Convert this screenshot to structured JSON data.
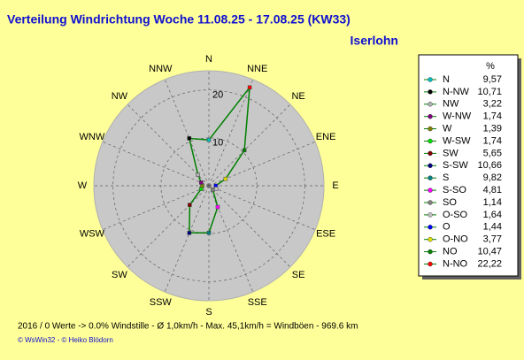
{
  "chart_data": {
    "type": "radar",
    "title": "Verteilung Windrichtung   Woche 11.08.25 - 17.08.25 (KW33)",
    "subtitle": "Iserlohn",
    "categories": [
      "N",
      "NNE",
      "NE",
      "ENE",
      "E",
      "ESE",
      "SE",
      "SSE",
      "S",
      "SSW",
      "SW",
      "WSW",
      "W",
      "WNW",
      "NW",
      "NNW"
    ],
    "values": [
      9.57,
      22.22,
      10.47,
      3.77,
      1.44,
      1.64,
      1.14,
      4.81,
      9.82,
      10.66,
      5.65,
      1.74,
      1.39,
      1.74,
      3.22,
      10.71
    ],
    "value_labels": [
      "9,57",
      "22,22",
      "10,47",
      "3,77",
      "1,44",
      "1,64",
      "1,14",
      "4,81",
      "9,82",
      "10,66",
      "5,65",
      "1,74",
      "1,39",
      "1,74",
      "3,22",
      "10,71"
    ],
    "legend_names": [
      "N",
      "N-NO",
      "NO",
      "O-NO",
      "O",
      "O-SO",
      "SO",
      "S-SO",
      "S",
      "S-SW",
      "SW",
      "W-SW",
      "W",
      "W-NW",
      "NW",
      "N-NW"
    ],
    "point_colors": [
      "#00c0c0",
      "#ff0000",
      "#008000",
      "#e0e000",
      "#0000ff",
      "#c0c0c0",
      "#808080",
      "#ff00ff",
      "#008080",
      "#000080",
      "#800000",
      "#00e000",
      "#808000",
      "#800080",
      "#b0b0b0",
      "#000000"
    ],
    "legend_header": "%",
    "color": "#008000",
    "rlim": [
      0,
      24
    ],
    "rticks": [
      10,
      20
    ],
    "footer": "2016 / 0 Werte  -> 0.0% Windstille   -   Ø 1,0km/h  -  Max. 45,1km/h = Windböen   -   969.6 km",
    "credit": "© WsWin32  -  © Heiko Blödorn"
  }
}
